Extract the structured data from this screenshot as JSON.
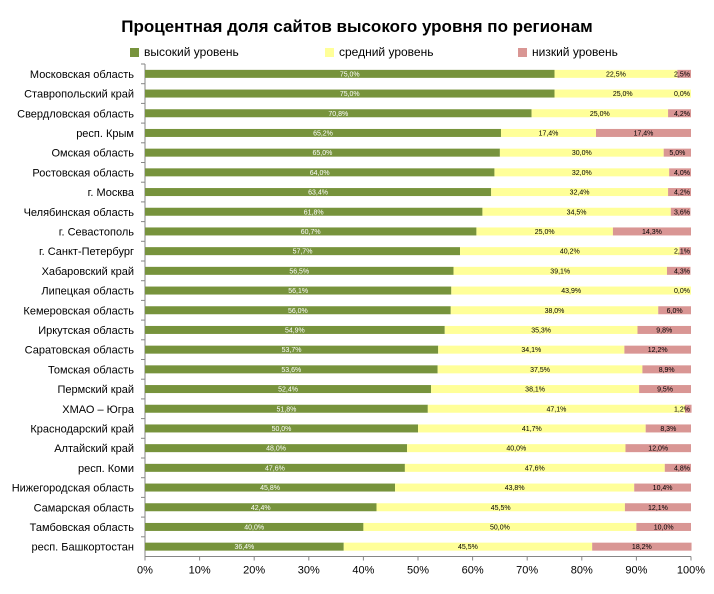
{
  "chart_data": {
    "type": "bar",
    "orientation": "horizontal",
    "stacked": true,
    "title": "Процентная доля сайтов высокого уровня по регионам",
    "xlim": [
      0,
      100
    ],
    "x_ticks": [
      "0%",
      "10%",
      "20%",
      "30%",
      "40%",
      "50%",
      "60%",
      "70%",
      "80%",
      "90%",
      "100%"
    ],
    "legend_position": "top",
    "grid": false,
    "categories": [
      "Московская область",
      "Ставропольский край",
      "Свердловская область",
      "респ. Крым",
      "Омская область",
      "Ростовская область",
      "г. Москва",
      "Челябинская область",
      "г. Севастополь",
      "г. Санкт-Петербург",
      "Хабаровский край",
      "Липецкая область",
      "Кемеровская область",
      "Иркутская область",
      "Саратовская область",
      "Томская область",
      "Пермский край",
      "ХМАО – Югра",
      "Краснодарский край",
      "Алтайский край",
      "респ. Коми",
      "Нижегородская область",
      "Самарская область",
      "Тамбовская область",
      "респ. Башкортостан"
    ],
    "series": [
      {
        "name": "высокий уровень",
        "color": "#77933c",
        "values": [
          75.0,
          75.0,
          70.8,
          65.2,
          65.0,
          64.0,
          63.4,
          61.8,
          60.7,
          57.7,
          56.5,
          56.1,
          56.0,
          54.9,
          53.7,
          53.6,
          52.4,
          51.8,
          50.0,
          48.0,
          47.6,
          45.8,
          42.4,
          40.0,
          36.4
        ],
        "labels": [
          "75,0%",
          "75,0%",
          "70,8%",
          "65,2%",
          "65,0%",
          "64,0%",
          "63,4%",
          "61,8%",
          "60,7%",
          "57,7%",
          "56,5%",
          "56,1%",
          "56,0%",
          "54,9%",
          "53,7%",
          "53,6%",
          "52,4%",
          "51,8%",
          "50,0%",
          "48,0%",
          "47,6%",
          "45,8%",
          "42,4%",
          "40,0%",
          "36,4%"
        ]
      },
      {
        "name": "средний уровень",
        "color": "#ffff99",
        "values": [
          22.5,
          25.0,
          25.0,
          17.4,
          30.0,
          32.0,
          32.4,
          34.5,
          25.0,
          40.2,
          39.1,
          43.9,
          38.0,
          35.3,
          34.1,
          37.5,
          38.1,
          47.1,
          41.7,
          40.0,
          47.6,
          43.8,
          45.5,
          50.0,
          45.5
        ],
        "labels": [
          "22,5%",
          "25,0%",
          "25,0%",
          "17,4%",
          "30,0%",
          "32,0%",
          "32,4%",
          "34,5%",
          "25,0%",
          "40,2%",
          "39,1%",
          "43,9%",
          "38,0%",
          "35,3%",
          "34,1%",
          "37,5%",
          "38,1%",
          "47,1%",
          "41,7%",
          "40,0%",
          "47,6%",
          "43,8%",
          "45,5%",
          "50,0%",
          "45,5%"
        ]
      },
      {
        "name": "низкий уровень",
        "color": "#d99694",
        "values": [
          2.5,
          0.0,
          4.2,
          17.4,
          5.0,
          4.0,
          4.2,
          3.6,
          14.3,
          2.1,
          4.3,
          0.0,
          6.0,
          9.8,
          12.2,
          8.9,
          9.5,
          1.2,
          8.3,
          12.0,
          4.8,
          10.4,
          12.1,
          10.0,
          18.2
        ],
        "labels": [
          "2,5%",
          "0,0%",
          "4,2%",
          "17,4%",
          "5,0%",
          "4,0%",
          "4,2%",
          "3,6%",
          "14,3%",
          "2,1%",
          "4,3%",
          "0,0%",
          "6,0%",
          "9,8%",
          "12,2%",
          "8,9%",
          "9,5%",
          "1,2%",
          "8,3%",
          "12,0%",
          "4,8%",
          "10,4%",
          "12,1%",
          "10,0%",
          "18,2%"
        ]
      }
    ]
  }
}
